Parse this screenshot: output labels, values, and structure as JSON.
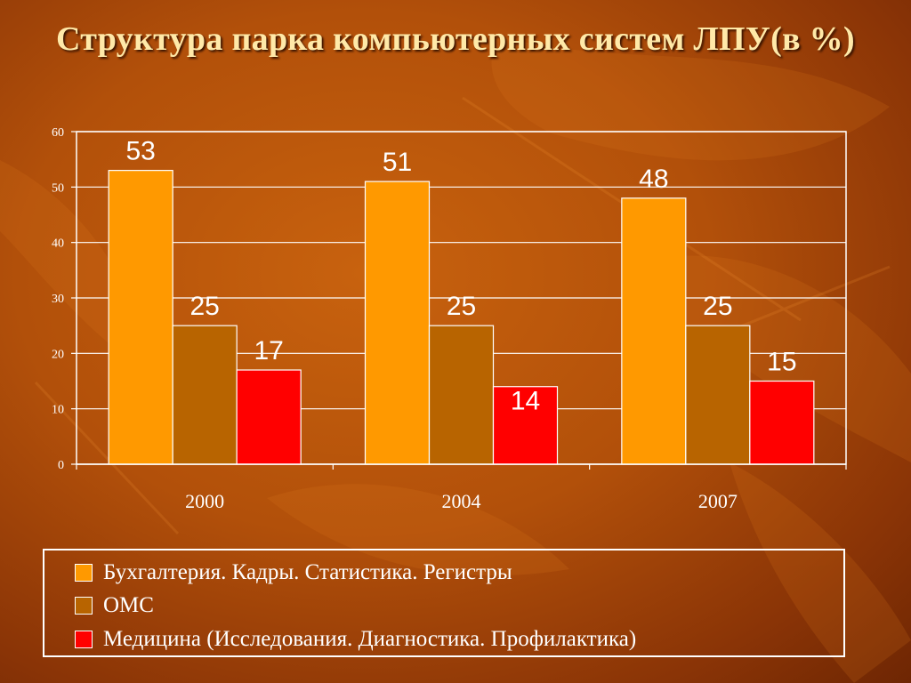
{
  "title": "Структура парка компьютерных систем ЛПУ(в %)",
  "chart_data": {
    "type": "bar",
    "categories": [
      "2000",
      "2004",
      "2007"
    ],
    "series": [
      {
        "name": "Бухгалтерия. Кадры. Статистика. Регистры",
        "values": [
          53,
          51,
          48
        ],
        "color": "#ff9900"
      },
      {
        "name": "ОМС",
        "values": [
          25,
          25,
          25
        ],
        "color": "#b86400"
      },
      {
        "name": "Медицина (Исследования. Диагностика. Профилактика)",
        "values": [
          17,
          14,
          15
        ],
        "color": "#ff0000"
      }
    ],
    "ylim": [
      0,
      60
    ],
    "yticks": [
      "0",
      "10",
      "20",
      "30",
      "40",
      "50",
      "60"
    ],
    "grid": true,
    "legend": "bottom",
    "xlabel": "",
    "ylabel": ""
  },
  "legend": {
    "items": [
      {
        "label": "Бухгалтерия. Кадры. Статистика. Регистры",
        "color": "#ff9900"
      },
      {
        "label": "ОМС",
        "color": "#b86400"
      },
      {
        "label": "Медицина (Исследования. Диагностика. Профилактика)",
        "color": "#ff0000"
      }
    ]
  }
}
